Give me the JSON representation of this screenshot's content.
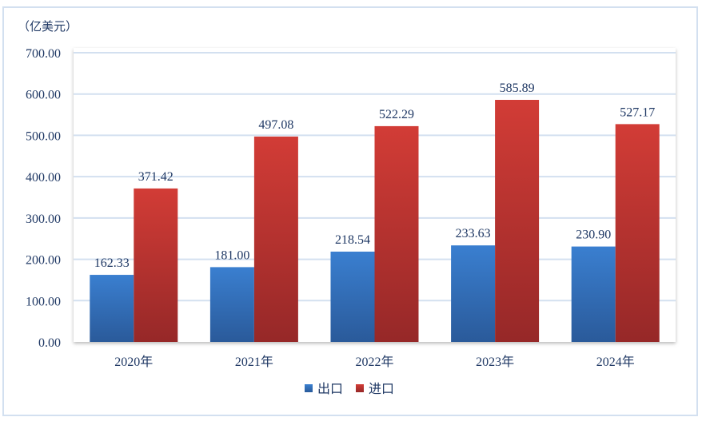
{
  "chart_data": {
    "type": "bar",
    "title": "",
    "ylabel": "（亿美元）",
    "xlabel": "",
    "categories": [
      "2020年",
      "2021年",
      "2022年",
      "2023年",
      "2024年"
    ],
    "series": [
      {
        "name": "出口",
        "color": "#2e6bb5",
        "values": [
          162.33,
          181.0,
          218.54,
          233.63,
          230.9
        ],
        "labels": [
          "162.33",
          "181.00",
          "218.54",
          "233.63",
          "230.90"
        ]
      },
      {
        "name": "进口",
        "color": "#b83232",
        "values": [
          371.42,
          497.08,
          522.29,
          585.89,
          527.17
        ],
        "labels": [
          "371.42",
          "497.08",
          "522.29",
          "585.89",
          "527.17"
        ]
      }
    ],
    "ylim": [
      0,
      700
    ],
    "yticks": [
      "0.00",
      "100.00",
      "200.00",
      "300.00",
      "400.00",
      "500.00",
      "600.00",
      "700.00"
    ],
    "grid": true,
    "legend": "bottom-center"
  }
}
